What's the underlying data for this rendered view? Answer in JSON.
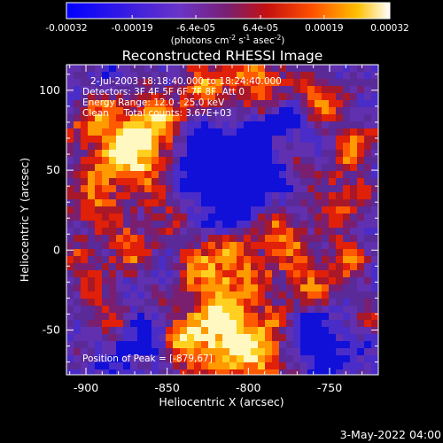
{
  "colorbar": {
    "tick_labels": [
      "-0.00032",
      "-0.00019",
      "-6.4e-05",
      "6.4e-05",
      "0.00019",
      "0.00032"
    ],
    "tick_values": [
      -0.00032,
      -0.00019,
      -6.4e-05,
      6.4e-05,
      0.00019,
      0.00032
    ],
    "range": [
      -0.00032,
      0.00032
    ],
    "units_main": "(photons cm",
    "units_exp1": "-2",
    "units_s": " s",
    "units_exp2": "-1",
    "units_asec": " asec",
    "units_exp3": "-2",
    "units_close": ")",
    "colors": [
      "#0000ff",
      "#6a34c8",
      "#7a2a8a",
      "#b01010",
      "#ff4000",
      "#ffb000",
      "#ffffff"
    ]
  },
  "chart_data": {
    "type": "heatmap",
    "title": "Reconstructed RHESSI Image",
    "xlabel": "Heliocentric X (arcsec)",
    "ylabel": "Heliocentric Y (arcsec)",
    "xlim": [
      -912,
      -720
    ],
    "ylim": [
      -78,
      116
    ],
    "x_ticks": [
      -900,
      -850,
      -800,
      -750
    ],
    "x_tick_labels": [
      "-900",
      "-850",
      "-800",
      "-750"
    ],
    "y_ticks": [
      -50,
      0,
      50,
      100
    ],
    "y_tick_labels": [
      "-50",
      "0",
      "50",
      "100"
    ],
    "peak": [
      -879,
      67
    ],
    "annotations": [
      "2-Jul-2003 18:18:40.000 to 18:24:40.000",
      "Detectors: 3F 4F 5F 6F 7F 8F, Att 0",
      "Energy Range: 12.0 - 25.0 keV",
      "Clean     Total counts: 3.67E+03"
    ],
    "peak_label": "Position of Peak = [-879,67]"
  },
  "footer": {
    "timestamp": "3-May-2022 04:00"
  }
}
